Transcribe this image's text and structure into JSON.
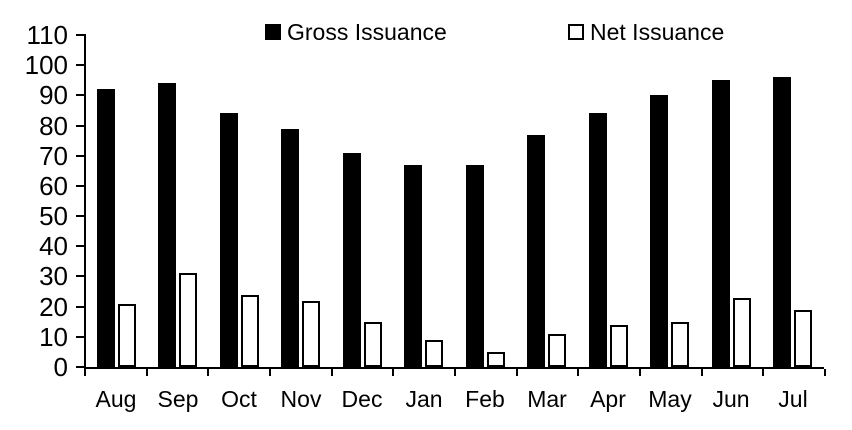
{
  "chart_data": {
    "type": "bar",
    "title": "",
    "xlabel": "",
    "ylabel": "",
    "categories": [
      "Aug",
      "Sep",
      "Oct",
      "Nov",
      "Dec",
      "Jan",
      "Feb",
      "Mar",
      "Apr",
      "May",
      "Jun",
      "Jul"
    ],
    "series": [
      {
        "name": "Gross Issuance",
        "style": "solid",
        "color": "#000000",
        "values": [
          92,
          94,
          84,
          79,
          71,
          67,
          67,
          77,
          84,
          90,
          95,
          96
        ]
      },
      {
        "name": "Net Issuance",
        "style": "outline",
        "color": "#ffffff",
        "border_color": "#000000",
        "values": [
          21,
          31,
          24,
          22,
          15,
          9,
          5,
          11,
          14,
          15,
          23,
          19
        ]
      }
    ],
    "ylim": [
      0,
      110
    ],
    "yticks": [
      0,
      10,
      20,
      30,
      40,
      50,
      60,
      70,
      80,
      90,
      100,
      110
    ],
    "grid": false,
    "legend_position": "top-inside",
    "axis_color": "#000000",
    "text_color": "#000000",
    "background": "#ffffff"
  }
}
